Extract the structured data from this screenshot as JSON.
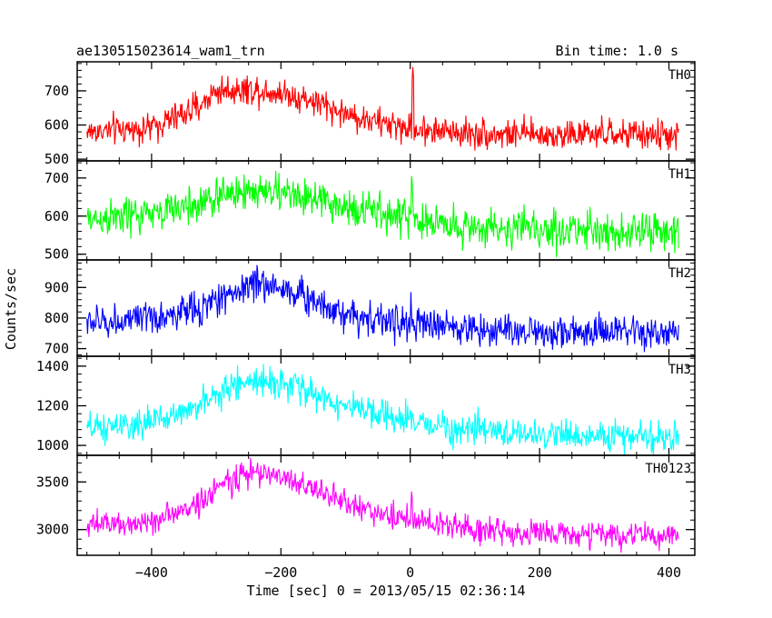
{
  "chart_data": {
    "type": "line",
    "title": "ae130515023614_wam1_trn",
    "bin_time_label": "Bin time: 1.0 s",
    "xlabel": "Time [sec] 0 = 2013/05/15 02:36:14",
    "ylabel": "Counts/sec",
    "xlim": [
      -515,
      440
    ],
    "x_ticks": [
      -400,
      -200,
      0,
      200,
      400
    ],
    "x_tick_labels": [
      "−400",
      "−200",
      "0",
      "200",
      "400"
    ],
    "x_start": -500,
    "x_end": 415,
    "grid": false,
    "panels": [
      {
        "name": "TH0",
        "color": "#ff0000",
        "ylim": [
          495,
          785
        ],
        "y_ticks": [
          500,
          600,
          700
        ],
        "y_tick_labels": [
          "500",
          "600",
          "700"
        ],
        "profile": [
          [
            -500,
            580
          ],
          [
            -400,
            592
          ],
          [
            -330,
            650
          ],
          [
            -300,
            700
          ],
          [
            -250,
            705
          ],
          [
            -200,
            695
          ],
          [
            -150,
            670
          ],
          [
            -100,
            632
          ],
          [
            -50,
            608
          ],
          [
            0,
            590
          ],
          [
            100,
            575
          ],
          [
            200,
            572
          ],
          [
            300,
            572
          ],
          [
            415,
            570
          ]
        ],
        "noise": 22,
        "spikes": [
          [
            4,
            770
          ],
          [
            5,
            740
          ],
          [
            3,
            735
          ]
        ]
      },
      {
        "name": "TH1",
        "color": "#00ff00",
        "ylim": [
          485,
          745
        ],
        "y_ticks": [
          500,
          600,
          700
        ],
        "y_tick_labels": [
          "500",
          "600",
          "700"
        ],
        "profile": [
          [
            -500,
            590
          ],
          [
            -400,
            605
          ],
          [
            -330,
            630
          ],
          [
            -280,
            660
          ],
          [
            -230,
            668
          ],
          [
            -180,
            655
          ],
          [
            -120,
            630
          ],
          [
            -50,
            610
          ],
          [
            0,
            592
          ],
          [
            100,
            570
          ],
          [
            200,
            565
          ],
          [
            300,
            562
          ],
          [
            415,
            555
          ]
        ],
        "noise": 25,
        "spikes": [
          [
            2,
            705
          ],
          [
            3,
            690
          ]
        ]
      },
      {
        "name": "TH2",
        "color": "#0000ff",
        "ylim": [
          675,
          990
        ],
        "y_ticks": [
          700,
          800,
          900
        ],
        "y_tick_labels": [
          "700",
          "800",
          "900"
        ],
        "profile": [
          [
            -500,
            785
          ],
          [
            -400,
            795
          ],
          [
            -320,
            835
          ],
          [
            -280,
            880
          ],
          [
            -240,
            915
          ],
          [
            -200,
            900
          ],
          [
            -150,
            860
          ],
          [
            -100,
            815
          ],
          [
            -50,
            795
          ],
          [
            0,
            780
          ],
          [
            100,
            765
          ],
          [
            200,
            755
          ],
          [
            300,
            752
          ],
          [
            415,
            745
          ]
        ],
        "noise": 28,
        "spikes": [
          [
            1,
            885
          ]
        ]
      },
      {
        "name": "TH3",
        "color": "#00ffff",
        "ylim": [
          950,
          1450
        ],
        "y_ticks": [
          1000,
          1200,
          1400
        ],
        "y_tick_labels": [
          "1000",
          "1200",
          "1400"
        ],
        "profile": [
          [
            -500,
            1080
          ],
          [
            -420,
            1100
          ],
          [
            -350,
            1170
          ],
          [
            -300,
            1250
          ],
          [
            -260,
            1320
          ],
          [
            -220,
            1330
          ],
          [
            -180,
            1300
          ],
          [
            -120,
            1220
          ],
          [
            -60,
            1160
          ],
          [
            0,
            1120
          ],
          [
            100,
            1075
          ],
          [
            200,
            1055
          ],
          [
            300,
            1045
          ],
          [
            415,
            1040
          ]
        ],
        "noise": 38,
        "spikes": []
      },
      {
        "name": "TH0123",
        "color": "#ff00ff",
        "ylim": [
          2730,
          3780
        ],
        "y_ticks": [
          3000,
          3500
        ],
        "y_tick_labels": [
          "3000",
          "3500"
        ],
        "profile": [
          [
            -500,
            3040
          ],
          [
            -420,
            3070
          ],
          [
            -360,
            3160
          ],
          [
            -320,
            3320
          ],
          [
            -280,
            3520
          ],
          [
            -240,
            3600
          ],
          [
            -200,
            3560
          ],
          [
            -140,
            3400
          ],
          [
            -80,
            3230
          ],
          [
            -20,
            3130
          ],
          [
            0,
            3100
          ],
          [
            100,
            3000
          ],
          [
            200,
            2960
          ],
          [
            300,
            2950
          ],
          [
            415,
            2920
          ]
        ],
        "noise": 70,
        "spikes": [
          [
            2,
            3400
          ],
          [
            3,
            3330
          ]
        ]
      }
    ]
  }
}
